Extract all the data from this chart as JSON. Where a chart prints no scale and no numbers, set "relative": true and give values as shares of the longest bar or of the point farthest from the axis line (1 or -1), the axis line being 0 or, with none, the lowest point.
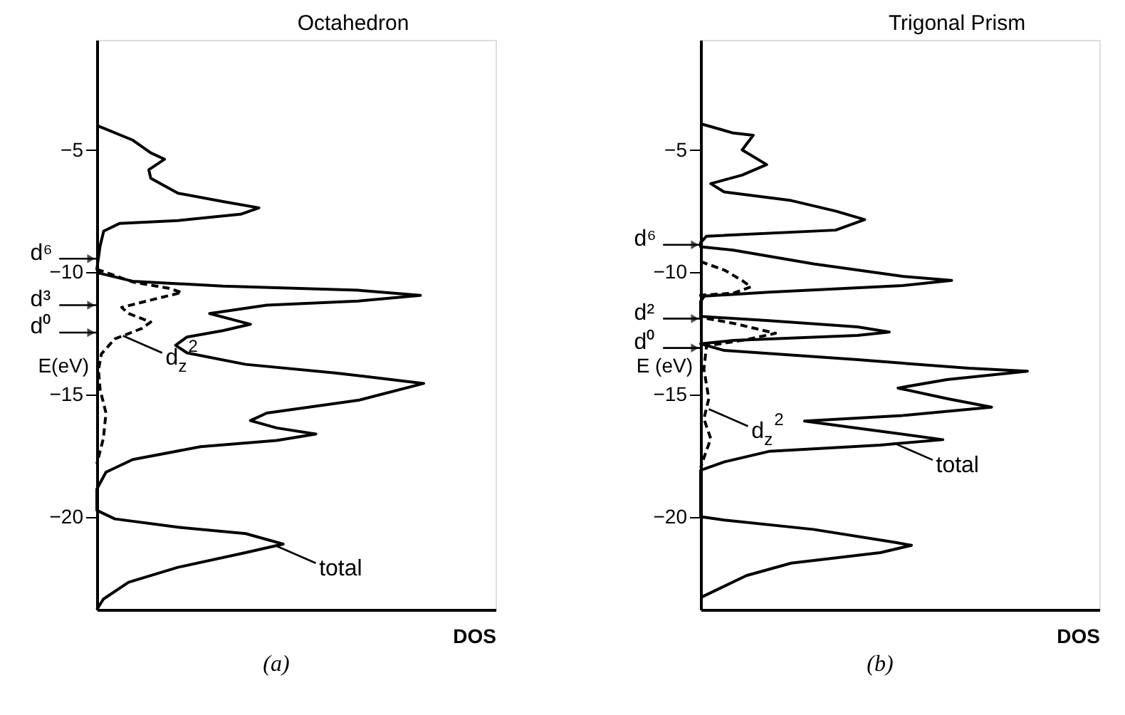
{
  "chart_data": [
    {
      "type": "line",
      "orientation": "horizontal",
      "relative": true,
      "title": "Octahedron",
      "xlabel": "DOS",
      "ylabel": "E(eV)",
      "ylim": [
        -23.8,
        -0.5
      ],
      "yticks": [
        -5,
        -10,
        -15,
        -20
      ],
      "grid": false,
      "series": [
        {
          "color": "#000000",
          "line_style": "solid",
          "x": [
            -4.0,
            -4.6,
            -5.12,
            -5.38,
            -5.81,
            -6.16,
            -6.77,
            -7.11,
            -7.37,
            -7.63,
            -7.89,
            -8.01,
            -8.32,
            -8.93,
            -9.88,
            -10.05,
            -10.37,
            -10.57,
            -10.74,
            -10.95,
            -11.18,
            -11.35,
            -11.69,
            -11.92,
            -12.13,
            -12.39,
            -12.65,
            -12.99,
            -13.3,
            -13.77,
            -14.12,
            -14.55,
            -15.24,
            -15.76,
            -16.07,
            -16.37,
            -16.62,
            -16.88,
            -17.14,
            -17.66,
            -18.18,
            -18.87,
            -19.74,
            -20.09,
            -20.43,
            -20.69,
            -21.12,
            -21.47,
            -22.07,
            -22.68,
            -23.37,
            -23.8
          ],
          "values": [
            0,
            0.11,
            0.165,
            0.207,
            0.159,
            0.165,
            0.248,
            0.386,
            0.496,
            0.44,
            0.248,
            0.069,
            0.021,
            0.01,
            0,
            0.01,
            0.11,
            0.386,
            0.8,
            0.99,
            0.8,
            0.52,
            0.345,
            0.41,
            0.47,
            0.386,
            0.276,
            0.241,
            0.276,
            0.455,
            0.73,
            1.0,
            0.8,
            0.52,
            0.47,
            0.55,
            0.67,
            0.55,
            0.317,
            0.11,
            0.028,
            0,
            0,
            0.055,
            0.248,
            0.455,
            0.57,
            0.455,
            0.248,
            0.097,
            0.02,
            0
          ]
        },
        {
          "color": "#000000",
          "line_style": "dashed",
          "x": [
            -9.88,
            -10.4,
            -10.66,
            -10.83,
            -11.09,
            -11.44,
            -11.69,
            -12.04,
            -12.3,
            -12.73,
            -13.34,
            -14.0,
            -14.8,
            -15.76,
            -16.8,
            -17.84
          ],
          "values": [
            0,
            0.11,
            0.22,
            0.26,
            0.18,
            0.076,
            0.097,
            0.165,
            0.138,
            0.055,
            0.014,
            0.005,
            0.01,
            0.028,
            0.02,
            0
          ]
        }
      ],
      "ref_lines": [
        {
          "axis": "y",
          "value": -9.45,
          "label": "d⁶"
        },
        {
          "axis": "y",
          "value": -11.35,
          "label": "d³"
        },
        {
          "axis": "y",
          "value": -12.47,
          "label": "d⁰"
        }
      ],
      "annotations": [
        {
          "text": "d$_{z}$$^{2}$",
          "x": 0.08,
          "y": -12.6
        },
        {
          "text": "total",
          "x": 0.55,
          "y": -21.2
        },
        "(a)"
      ]
    },
    {
      "type": "line",
      "orientation": "horizontal",
      "relative": true,
      "title": "Trigonal Prism",
      "xlabel": "DOS",
      "ylabel": "E (eV)",
      "ylim": [
        -23.8,
        -0.5
      ],
      "yticks": [
        -5,
        -10,
        -15,
        -20
      ],
      "grid": false,
      "series": [
        {
          "color": "#000000",
          "line_style": "solid",
          "x": [
            -3.93,
            -4.31,
            -4.4,
            -5.0,
            -5.6,
            -6.03,
            -6.38,
            -6.72,
            -7.07,
            -7.5,
            -7.85,
            -8.28,
            -8.53,
            -8.79,
            -8.96,
            -9.1,
            -9.66,
            -10.17,
            -10.34,
            -10.55,
            -10.82,
            -10.98,
            -11.2,
            -11.81,
            -11.98,
            -12.24,
            -12.45,
            -12.59,
            -12.79,
            -12.93,
            -13.2,
            -13.58,
            -13.93,
            -14.05,
            -14.39,
            -14.74,
            -15.17,
            -15.52,
            -15.86,
            -16.09,
            -16.38,
            -16.85,
            -17.07,
            -17.33,
            -17.76,
            -18.1,
            -20.0,
            -20.14,
            -20.52,
            -21.04,
            -21.17,
            -21.47,
            -21.9,
            -22.41,
            -23.31
          ],
          "values": [
            0,
            0.1,
            0.161,
            0.127,
            0.202,
            0.127,
            0.031,
            0.072,
            0.277,
            0.413,
            0.502,
            0.413,
            0.018,
            0,
            0,
            0.1,
            0.345,
            0.618,
            0.768,
            0.618,
            0.209,
            0.011,
            0,
            0,
            0.209,
            0.48,
            0.577,
            0.48,
            0.1,
            0,
            0.072,
            0.48,
            0.82,
            1.0,
            0.754,
            0.604,
            0.754,
            0.89,
            0.618,
            0.318,
            0.48,
            0.741,
            0.55,
            0.209,
            0.072,
            0,
            0,
            0.072,
            0.345,
            0.59,
            0.645,
            0.55,
            0.277,
            0.14,
            0
          ]
        },
        {
          "color": "#000000",
          "line_style": "dashed",
          "x": [
            -9.57,
            -9.91,
            -10.34,
            -10.6,
            -10.86,
            -10.94,
            -11.85,
            -12.09,
            -12.5,
            -12.76,
            -13.02,
            -13.96,
            -15.17,
            -16.0,
            -16.81,
            -17.59,
            -18.0
          ],
          "values": [
            0,
            0.072,
            0.127,
            0.154,
            0.1,
            0,
            0,
            0.1,
            0.229,
            0.14,
            0.018,
            0.01,
            0.025,
            0.01,
            0.031,
            0.01,
            0
          ]
        }
      ],
      "ref_lines": [
        {
          "axis": "y",
          "value": -8.88,
          "label": "d⁶"
        },
        {
          "axis": "y",
          "value": -11.9,
          "label": "d²"
        },
        {
          "axis": "y",
          "value": -13.1,
          "label": "d⁰"
        }
      ],
      "annotations": [
        {
          "text": "d$_{z}$$^{2}$",
          "x": 0.025,
          "y": -15.6
        },
        {
          "text": "total",
          "x": 0.59,
          "y": -16.98
        },
        "(b)"
      ]
    }
  ]
}
